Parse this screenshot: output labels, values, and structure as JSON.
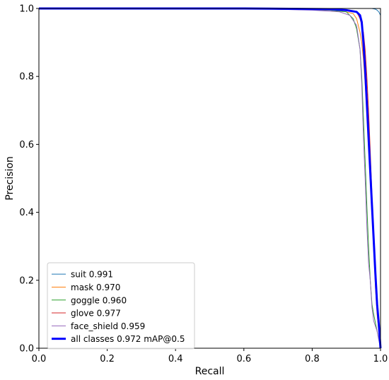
{
  "chart_data": {
    "type": "line",
    "title": "",
    "xlabel": "Recall",
    "ylabel": "Precision",
    "xlim": [
      0,
      1
    ],
    "ylim": [
      0,
      1
    ],
    "xticks": [
      "0.0",
      "0.2",
      "0.4",
      "0.6",
      "0.8",
      "1.0"
    ],
    "yticks": [
      "0.0",
      "0.2",
      "0.4",
      "0.6",
      "0.8",
      "1.0"
    ],
    "grid": false,
    "legend_position": "lower-left",
    "series": [
      {
        "name": "suit 0.991",
        "color": "#1f77b4",
        "width": 1,
        "x": [
          0.0,
          0.5,
          0.8,
          0.9,
          0.95,
          0.97,
          0.975,
          0.98,
          0.985,
          0.99,
          0.995,
          1.0,
          1.0
        ],
        "y": [
          1.0,
          1.0,
          1.0,
          1.0,
          1.0,
          1.0,
          1.0,
          0.999,
          0.998,
          0.995,
          0.99,
          0.98,
          0.0
        ]
      },
      {
        "name": "mask 0.970",
        "color": "#ff7f0e",
        "width": 1,
        "x": [
          0.0,
          0.6,
          0.85,
          0.9,
          0.92,
          0.93,
          0.94,
          0.945,
          0.95,
          0.955,
          0.96,
          0.965,
          0.97,
          0.975,
          0.98,
          0.985,
          0.99,
          0.995,
          1.0
        ],
        "y": [
          1.0,
          1.0,
          0.995,
          0.99,
          0.985,
          0.97,
          0.93,
          0.9,
          0.85,
          0.78,
          0.7,
          0.62,
          0.52,
          0.42,
          0.3,
          0.18,
          0.1,
          0.05,
          0.0
        ]
      },
      {
        "name": "goggle 0.960",
        "color": "#2ca02c",
        "width": 1,
        "x": [
          0.0,
          0.6,
          0.85,
          0.9,
          0.92,
          0.93,
          0.94,
          0.945,
          0.95,
          0.955,
          0.96,
          0.965,
          0.97,
          0.975,
          0.98,
          0.99,
          1.0
        ],
        "y": [
          1.0,
          1.0,
          0.995,
          0.99,
          0.97,
          0.94,
          0.88,
          0.8,
          0.68,
          0.55,
          0.42,
          0.3,
          0.2,
          0.13,
          0.1,
          0.05,
          0.0
        ]
      },
      {
        "name": "glove 0.977",
        "color": "#d62728",
        "width": 1,
        "x": [
          0.0,
          0.6,
          0.85,
          0.9,
          0.93,
          0.94,
          0.95,
          0.955,
          0.96,
          0.965,
          0.97,
          0.975,
          0.98,
          0.985,
          0.99,
          0.995,
          1.0
        ],
        "y": [
          1.0,
          1.0,
          0.998,
          0.995,
          0.99,
          0.97,
          0.93,
          0.88,
          0.8,
          0.7,
          0.58,
          0.45,
          0.33,
          0.22,
          0.12,
          0.06,
          0.0
        ]
      },
      {
        "name": "face_shield 0.959",
        "color": "#9467bd",
        "width": 1,
        "x": [
          0.0,
          0.6,
          0.8,
          0.88,
          0.91,
          0.93,
          0.94,
          0.945,
          0.95,
          0.955,
          0.96,
          0.965,
          0.97,
          0.975,
          0.98,
          0.99,
          1.0
        ],
        "y": [
          1.0,
          1.0,
          0.995,
          0.99,
          0.98,
          0.95,
          0.88,
          0.78,
          0.62,
          0.5,
          0.36,
          0.25,
          0.2,
          0.12,
          0.08,
          0.05,
          0.0
        ]
      },
      {
        "name": "all classes 0.972 mAP@0.5",
        "color": "#0000ff",
        "width": 3,
        "x": [
          0.0,
          0.6,
          0.85,
          0.9,
          0.93,
          0.94,
          0.945,
          0.95,
          0.955,
          0.96,
          0.965,
          0.97,
          0.975,
          0.98,
          0.985,
          0.99,
          0.995,
          1.0
        ],
        "y": [
          1.0,
          1.0,
          0.998,
          0.995,
          0.99,
          0.98,
          0.96,
          0.9,
          0.82,
          0.72,
          0.62,
          0.52,
          0.42,
          0.32,
          0.22,
          0.13,
          0.07,
          0.0
        ]
      }
    ]
  }
}
